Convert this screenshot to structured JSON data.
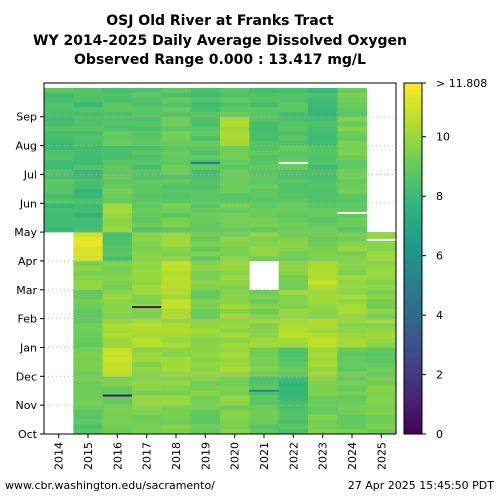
{
  "chart_data": {
    "type": "heatmap",
    "title_lines": [
      "OSJ Old River at Franks Tract",
      "WY 2014-2025 Daily Average Dissolved Oxygen",
      "Observed Range 0.000 : 13.417 mg/L"
    ],
    "xlabel": "",
    "ylabel": "",
    "x_categories": [
      "2014",
      "2015",
      "2016",
      "2017",
      "2018",
      "2019",
      "2020",
      "2021",
      "2022",
      "2023",
      "2024",
      "2025"
    ],
    "y_month_ticks": [
      "Oct",
      "Nov",
      "Dec",
      "Jan",
      "Feb",
      "Mar",
      "Apr",
      "May",
      "Jun",
      "Jul",
      "Aug",
      "Sep"
    ],
    "colorbar": {
      "vmin": 0,
      "vmax": 11.808,
      "ticks": [
        0,
        2,
        4,
        6,
        8,
        10
      ],
      "top_label": "> 11.808",
      "colormap": "viridis"
    },
    "grid": "dotted horizontal lines at month ticks",
    "approx_monthly_values": {
      "2014": [
        null,
        null,
        null,
        null,
        null,
        null,
        null,
        8.0,
        8.6,
        8.3,
        8.4,
        8.5
      ],
      "2015": [
        8.8,
        9.1,
        9.3,
        9.2,
        9.1,
        9.6,
        11.2,
        8.0,
        8.1,
        8.2,
        8.5,
        8.3
      ],
      "2016": [
        9.2,
        9.3,
        10.6,
        10.2,
        9.9,
        9.5,
        8.6,
        9.9,
        9.0,
        8.6,
        8.7,
        8.6
      ],
      "2017": [
        9.4,
        9.6,
        9.8,
        10.4,
        9.7,
        10.0,
        9.4,
        8.9,
        8.7,
        8.5,
        8.6,
        8.5
      ],
      "2018": [
        9.5,
        9.7,
        9.9,
        10.1,
        10.5,
        10.7,
        9.8,
        9.1,
        8.8,
        8.9,
        9.0,
        8.7
      ],
      "2019": [
        9.1,
        9.5,
        9.7,
        9.9,
        9.3,
        9.6,
        9.2,
        8.9,
        8.7,
        8.6,
        8.7,
        8.4
      ],
      "2020": [
        9.4,
        9.6,
        10.1,
        10.0,
        9.9,
        9.8,
        9.6,
        9.2,
        8.9,
        9.0,
        10.2,
        8.8
      ],
      "2021": [
        9.0,
        8.6,
        9.3,
        9.8,
        9.4,
        null,
        9.6,
        9.2,
        8.9,
        8.6,
        8.4,
        8.5
      ],
      "2022": [
        8.7,
        8.1,
        8.8,
        10.3,
        9.8,
        9.5,
        9.4,
        9.0,
        8.6,
        8.8,
        8.7,
        8.6
      ],
      "2023": [
        9.3,
        9.4,
        10.1,
        10.4,
        10.0,
        10.5,
        9.3,
        8.9,
        8.3,
        8.4,
        8.3,
        8.2
      ],
      "2024": [
        9.1,
        9.2,
        9.0,
        10.0,
        10.1,
        9.8,
        9.6,
        8.9,
        9.0,
        9.2,
        9.3,
        9.1
      ],
      "2025": [
        9.3,
        9.5,
        8.9,
        9.9,
        9.6,
        9.8,
        9.8,
        null,
        null,
        null,
        null,
        null
      ]
    },
    "special_marks": [
      {
        "year": "2016",
        "month": "Nov",
        "day": 10,
        "value": 1.0
      },
      {
        "year": "2017",
        "month": "Feb",
        "day": 12,
        "value": 0.5
      },
      {
        "year": "2019",
        "month": "Jul",
        "day": 12,
        "value": 5.0
      },
      {
        "year": "2021",
        "month": "Nov",
        "day": 15,
        "value": 5.5
      },
      {
        "year": "2022",
        "month": "Jul",
        "day": 12,
        "value": 12.5
      },
      {
        "year": "2024",
        "month": "May",
        "day": 20,
        "value": 12.5
      },
      {
        "year": "2025",
        "month": "Apr",
        "day": 22,
        "value": 12.5
      }
    ]
  },
  "footer": {
    "left": "www.cbr.washington.edu/sacramento/",
    "right": "27 Apr 2025 15:45:50 PDT"
  }
}
